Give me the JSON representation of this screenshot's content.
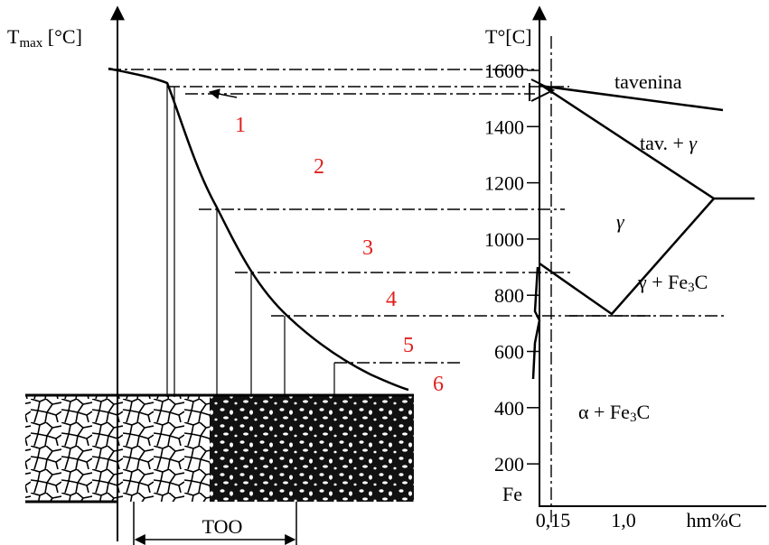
{
  "left_axis": {
    "symbol": "T",
    "subscript": "max",
    "unit": " [°C]"
  },
  "right_axis": {
    "label": "T°[C]",
    "ticks": [
      "1600",
      "1400",
      "1200",
      "1000",
      "800",
      "600",
      "400",
      "200"
    ]
  },
  "zones": [
    "1",
    "2",
    "3",
    "4",
    "5",
    "6"
  ],
  "phases": {
    "liquid": "tavenina",
    "liquid_gamma": {
      "text": "tav. + ",
      "symbol": "γ"
    },
    "gamma": "γ",
    "gamma_cementite": {
      "main": "γ + Fe",
      "sub": "3",
      "tail": "C"
    },
    "alpha_cementite": {
      "main": "α + Fe",
      "sub": "3",
      "tail": "C"
    }
  },
  "x_axis": {
    "origin": "Fe",
    "ticks": [
      "0,15",
      "1,0"
    ],
    "unit": "hm%C"
  },
  "haz_label": "TOO"
}
